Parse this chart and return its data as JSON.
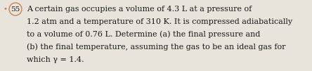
{
  "bullet_number": "55",
  "bullet_dot_color": "#c87840",
  "bullet_circle_color": "#c87840",
  "text_color": "#1a1a1a",
  "background_color": "#e8e4dc",
  "font_size": 8.0,
  "bullet_font_size": 7.5,
  "line1": "A certain gas occupies a volume of 4.3 L at a pressure of",
  "line2": "1.2 atm and a temperature of 310 K. It is compressed adiabatically",
  "line3": "to a volume of 0.76 L. Determine (a) the final pressure and",
  "line4": "(b) the final temperature, assuming the gas to be an ideal gas for",
  "line5": "which γ = 1.4."
}
